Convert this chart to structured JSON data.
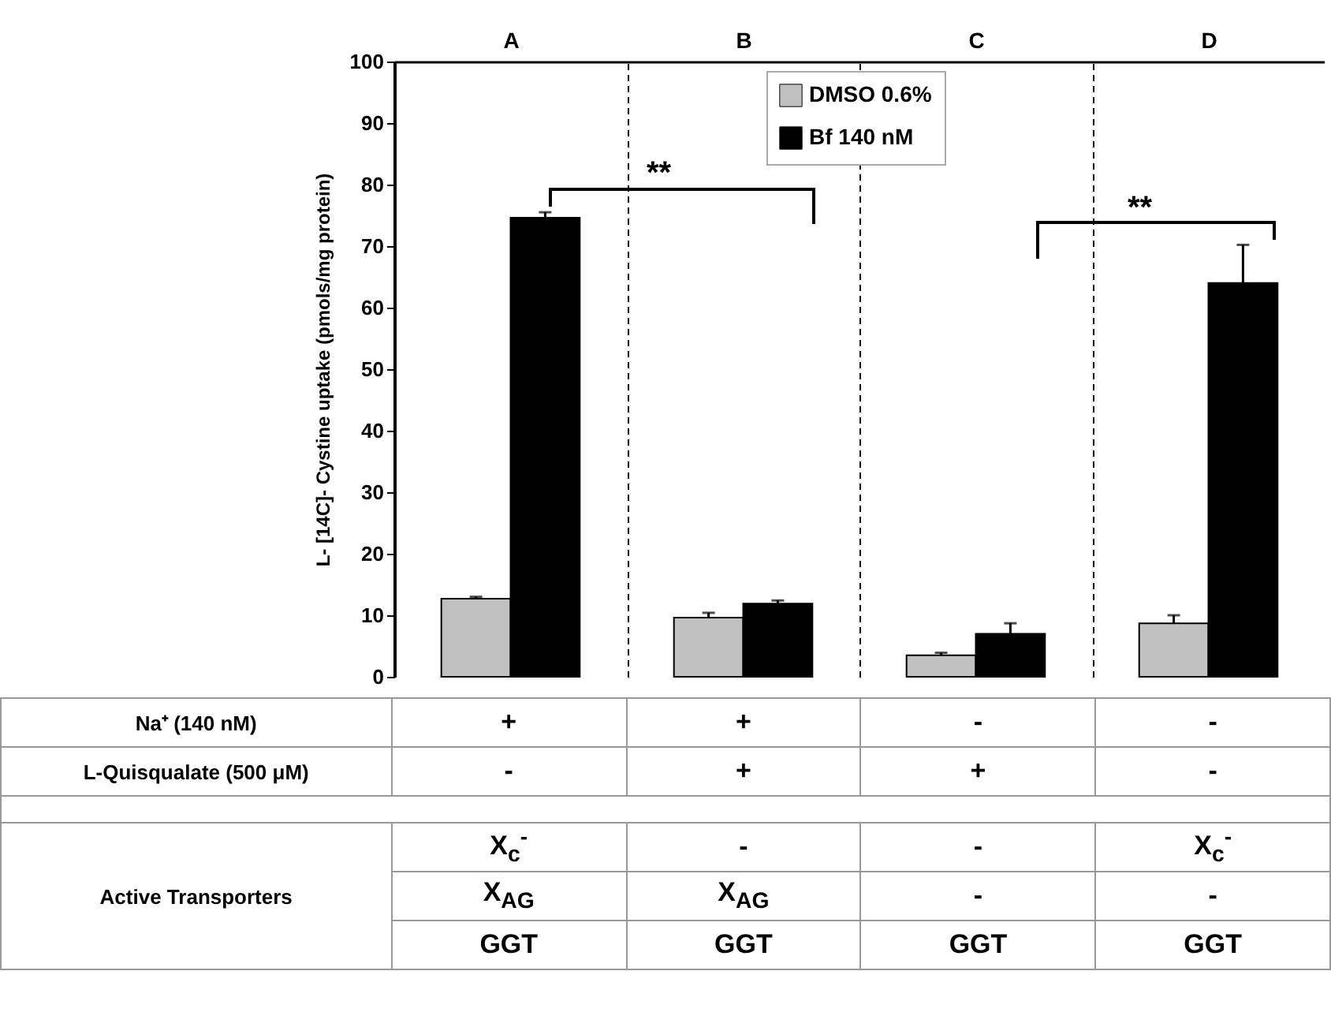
{
  "chart_data": {
    "type": "bar",
    "ylabel": "L- [14C]- Cystine uptake (pmols/mg protein)",
    "categories": [
      "A",
      "B",
      "C",
      "D"
    ],
    "series": [
      {
        "name": "DMSO 0.6%",
        "color": "#c0c0c0",
        "values": [
          12.7,
          9.6,
          3.5,
          8.7
        ],
        "errors": [
          [
            12.7,
            13.0
          ],
          [
            9.6,
            10.4
          ],
          [
            3.5,
            3.9
          ],
          [
            8.7,
            10.0
          ]
        ]
      },
      {
        "name": "Bf 140 nM",
        "color": "#000000",
        "values": [
          74.6,
          11.9,
          7.0,
          64.0
        ],
        "errors": [
          [
            74.6,
            75.5
          ],
          [
            11.9,
            12.4
          ],
          [
            7.0,
            8.7
          ],
          [
            64.0,
            70.2
          ]
        ]
      }
    ],
    "ylim": [
      0,
      100
    ],
    "yticks": [
      0,
      10,
      20,
      30,
      40,
      50,
      60,
      70,
      80,
      90,
      100
    ],
    "grid": "x",
    "legend": "top",
    "annotations": [
      "**",
      "**",
      "Na⁺ (140 nM)",
      "+",
      "+",
      "-",
      "-",
      "L-Quisqualate (500 μM)",
      "-",
      "+",
      "+",
      "-",
      "Active Transporters",
      "X$_{c}$$^{-}$",
      "-",
      "-",
      "X$_{c}$$^{-}$",
      "X$_{AG}$",
      "X$_{AG}$",
      "-",
      "-",
      "GGT",
      "GGT",
      "GGT",
      "GGT"
    ]
  }
}
